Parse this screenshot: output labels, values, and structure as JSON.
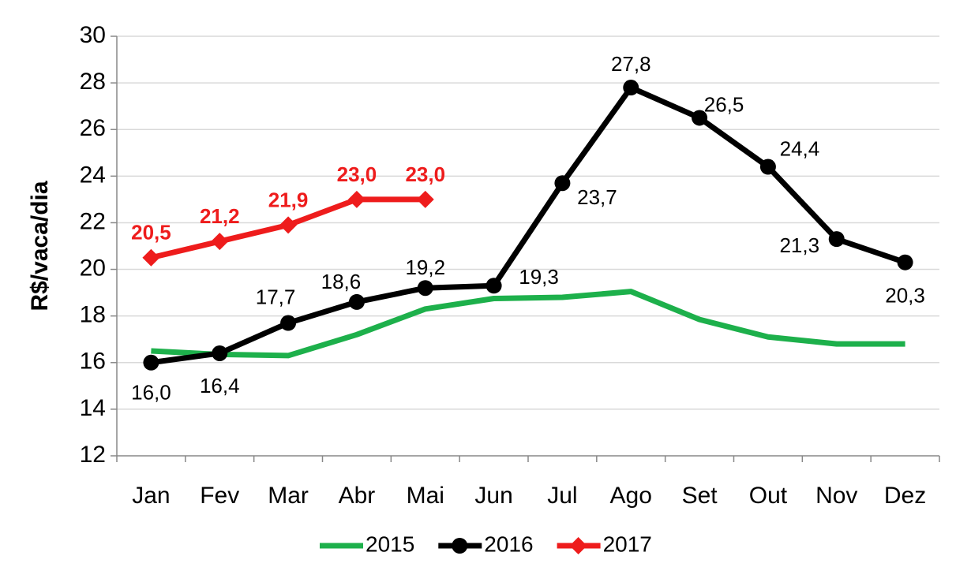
{
  "chart_data": {
    "type": "line",
    "y_label": "R$/vaca/dia",
    "categories": [
      "Jan",
      "Fev",
      "Mar",
      "Abr",
      "Mai",
      "Jun",
      "Jul",
      "Ago",
      "Set",
      "Out",
      "Nov",
      "Dez"
    ],
    "series": [
      {
        "name": "2015",
        "color": "#1db04b",
        "values": [
          16.5,
          16.35,
          16.3,
          17.2,
          18.3,
          18.75,
          18.8,
          19.05,
          17.85,
          17.1,
          16.8,
          16.8
        ]
      },
      {
        "name": "2016",
        "color": "#000000",
        "marker": "circle",
        "values": [
          16.0,
          16.4,
          17.7,
          18.6,
          19.2,
          19.3,
          23.7,
          27.8,
          26.5,
          24.4,
          21.3,
          20.3
        ],
        "value_labels": [
          "16,0",
          "16,4",
          "17,7",
          "18,6",
          "19,2",
          "19,3",
          "23,7",
          "27,8",
          "26,5",
          "24,4",
          "21,3",
          "20,3"
        ]
      },
      {
        "name": "2017",
        "color": "#ee1c1c",
        "marker": "diamond",
        "values": [
          20.5,
          21.2,
          21.9,
          23.0,
          23.0,
          null,
          null,
          null,
          null,
          null,
          null,
          null
        ],
        "value_labels": [
          "20,5",
          "21,2",
          "21,9",
          "23,0",
          "23,0",
          null,
          null,
          null,
          null,
          null,
          null,
          null
        ]
      }
    ],
    "ylim": [
      12,
      30
    ],
    "yticks": [
      12,
      14,
      16,
      18,
      20,
      22,
      24,
      26,
      28,
      30
    ],
    "grid": true,
    "legend": "bottom"
  }
}
